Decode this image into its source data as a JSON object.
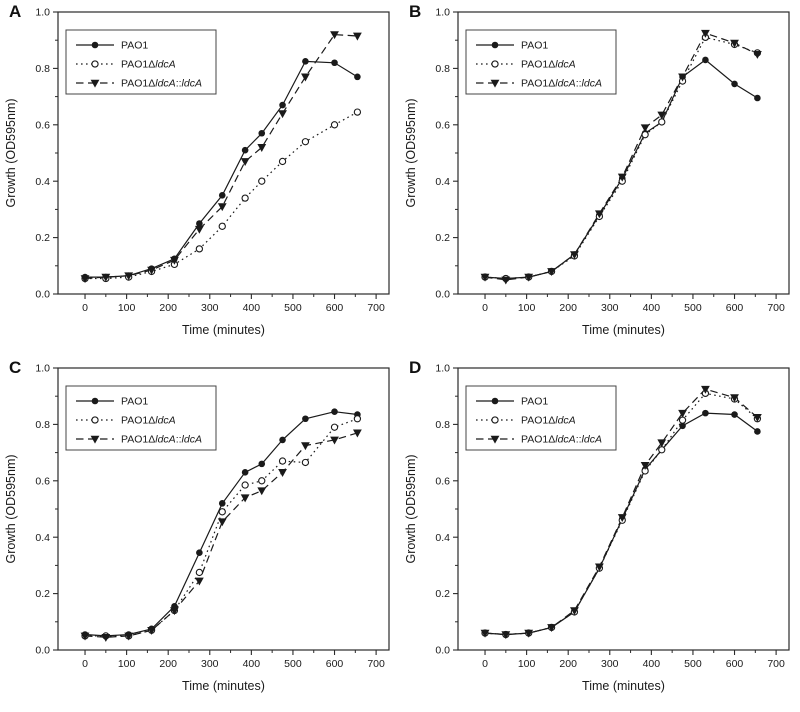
{
  "figure": {
    "panels": [
      {
        "letter": "A"
      },
      {
        "letter": "B"
      },
      {
        "letter": "C"
      },
      {
        "letter": "D"
      }
    ]
  },
  "axes": {
    "x_label": "Time (minutes)",
    "y_label": "Growth (OD595nm)",
    "x_domain": [
      -65,
      731
    ],
    "y_domain": [
      0,
      1
    ],
    "x_major_ticks": [
      0,
      100,
      200,
      300,
      400,
      500,
      600,
      700
    ],
    "x_minor_ticks": [
      50,
      150,
      250,
      350,
      450,
      550,
      650
    ],
    "y_major_ticks": [
      {
        "v": 0.0,
        "label": "0.0"
      },
      {
        "v": 0.2,
        "label": "0.2"
      },
      {
        "v": 0.4,
        "label": "0.4"
      },
      {
        "v": 0.6,
        "label": "0.6"
      },
      {
        "v": 0.8,
        "label": "0.8"
      },
      {
        "v": 1.0,
        "label": "1.0"
      }
    ],
    "y_minor_ticks": [
      0.1,
      0.3,
      0.5,
      0.7,
      0.9
    ]
  },
  "legend": {
    "entries": [
      {
        "marker": "filled-circle",
        "line": "solid",
        "parts": [
          {
            "text": "PAO1",
            "italic": false
          }
        ]
      },
      {
        "marker": "open-circle",
        "line": "dotted",
        "parts": [
          {
            "text": "PAO1Δ",
            "italic": false
          },
          {
            "text": "ldcA",
            "italic": true
          }
        ]
      },
      {
        "marker": "filled-triangle-down",
        "line": "dashed",
        "parts": [
          {
            "text": "PAO1Δ",
            "italic": false
          },
          {
            "text": "ldcA",
            "italic": true
          },
          {
            "text": "::",
            "italic": false
          },
          {
            "text": "ldcA",
            "italic": true
          }
        ]
      }
    ]
  },
  "colors": {
    "line": "#1a1a1a",
    "frame": "#2a2a2a",
    "text": "#1a1a1a",
    "background": "#ffffff"
  },
  "chart_data": [
    {
      "panel": "A",
      "type": "line",
      "xlabel": "Time (minutes)",
      "ylabel": "Growth (OD595nm)",
      "xlim": [
        0,
        700
      ],
      "ylim": [
        0,
        1
      ],
      "x": [
        0,
        50,
        105,
        160,
        215,
        275,
        330,
        385,
        425,
        475,
        530,
        600,
        655
      ],
      "series": [
        {
          "name": "PAO1",
          "marker": "filled-circle",
          "line": "solid",
          "values": [
            0.06,
            0.06,
            0.065,
            0.09,
            0.125,
            0.25,
            0.35,
            0.51,
            0.57,
            0.67,
            0.825,
            0.82,
            0.77
          ]
        },
        {
          "name": "PAO1ΔldcA",
          "marker": "open-circle",
          "line": "dotted",
          "values": [
            0.055,
            0.055,
            0.06,
            0.08,
            0.105,
            0.16,
            0.24,
            0.34,
            0.4,
            0.47,
            0.54,
            0.6,
            0.645
          ]
        },
        {
          "name": "PAO1ΔldcA::ldcA",
          "marker": "filled-triangle-down",
          "line": "dashed",
          "values": [
            0.055,
            0.06,
            0.065,
            0.085,
            0.12,
            0.23,
            0.31,
            0.47,
            0.52,
            0.64,
            0.77,
            0.92,
            0.915
          ]
        }
      ]
    },
    {
      "panel": "B",
      "type": "line",
      "xlabel": "Time (minutes)",
      "ylabel": "Growth (OD595nm)",
      "xlim": [
        0,
        700
      ],
      "ylim": [
        0,
        1
      ],
      "x": [
        0,
        50,
        105,
        160,
        215,
        275,
        330,
        385,
        425,
        475,
        530,
        600,
        655
      ],
      "series": [
        {
          "name": "PAO1",
          "marker": "filled-circle",
          "line": "solid",
          "values": [
            0.06,
            0.055,
            0.06,
            0.08,
            0.14,
            0.28,
            0.41,
            0.57,
            0.61,
            0.77,
            0.83,
            0.745,
            0.695
          ]
        },
        {
          "name": "PAO1ΔldcA",
          "marker": "open-circle",
          "line": "dotted",
          "values": [
            0.06,
            0.055,
            0.06,
            0.08,
            0.135,
            0.275,
            0.4,
            0.565,
            0.61,
            0.755,
            0.91,
            0.885,
            0.855
          ]
        },
        {
          "name": "PAO1ΔldcA::ldcA",
          "marker": "filled-triangle-down",
          "line": "dashed",
          "values": [
            0.06,
            0.05,
            0.06,
            0.08,
            0.14,
            0.285,
            0.415,
            0.59,
            0.635,
            0.77,
            0.925,
            0.89,
            0.85
          ]
        }
      ]
    },
    {
      "panel": "C",
      "type": "line",
      "xlabel": "Time (minutes)",
      "ylabel": "Growth (OD595nm)",
      "xlim": [
        0,
        700
      ],
      "ylim": [
        0,
        1
      ],
      "x": [
        0,
        50,
        105,
        160,
        215,
        275,
        330,
        385,
        425,
        475,
        530,
        600,
        655
      ],
      "series": [
        {
          "name": "PAO1",
          "marker": "filled-circle",
          "line": "solid",
          "values": [
            0.055,
            0.05,
            0.055,
            0.075,
            0.155,
            0.345,
            0.52,
            0.63,
            0.66,
            0.745,
            0.82,
            0.845,
            0.835
          ]
        },
        {
          "name": "PAO1ΔldcA",
          "marker": "open-circle",
          "line": "dotted",
          "values": [
            0.05,
            0.05,
            0.05,
            0.07,
            0.14,
            0.275,
            0.49,
            0.585,
            0.6,
            0.67,
            0.665,
            0.79,
            0.82
          ]
        },
        {
          "name": "PAO1ΔldcA::ldcA",
          "marker": "filled-triangle-down",
          "line": "dashed",
          "values": [
            0.05,
            0.045,
            0.05,
            0.07,
            0.14,
            0.245,
            0.455,
            0.54,
            0.565,
            0.63,
            0.725,
            0.745,
            0.77
          ]
        }
      ]
    },
    {
      "panel": "D",
      "type": "line",
      "xlabel": "Time (minutes)",
      "ylabel": "Growth (OD595nm)",
      "xlim": [
        0,
        700
      ],
      "ylim": [
        0,
        1
      ],
      "x": [
        0,
        50,
        105,
        160,
        215,
        275,
        330,
        385,
        425,
        475,
        530,
        600,
        655
      ],
      "series": [
        {
          "name": "PAO1",
          "marker": "filled-circle",
          "line": "solid",
          "values": [
            0.06,
            0.055,
            0.06,
            0.08,
            0.135,
            0.29,
            0.465,
            0.64,
            0.71,
            0.795,
            0.84,
            0.835,
            0.775
          ]
        },
        {
          "name": "PAO1ΔldcA",
          "marker": "open-circle",
          "line": "dotted",
          "values": [
            0.06,
            0.055,
            0.06,
            0.08,
            0.135,
            0.29,
            0.46,
            0.635,
            0.71,
            0.815,
            0.91,
            0.89,
            0.82
          ]
        },
        {
          "name": "PAO1ΔldcA::ldcA",
          "marker": "filled-triangle-down",
          "line": "dashed",
          "values": [
            0.06,
            0.055,
            0.06,
            0.08,
            0.14,
            0.295,
            0.47,
            0.655,
            0.735,
            0.84,
            0.925,
            0.895,
            0.825
          ]
        }
      ]
    }
  ]
}
